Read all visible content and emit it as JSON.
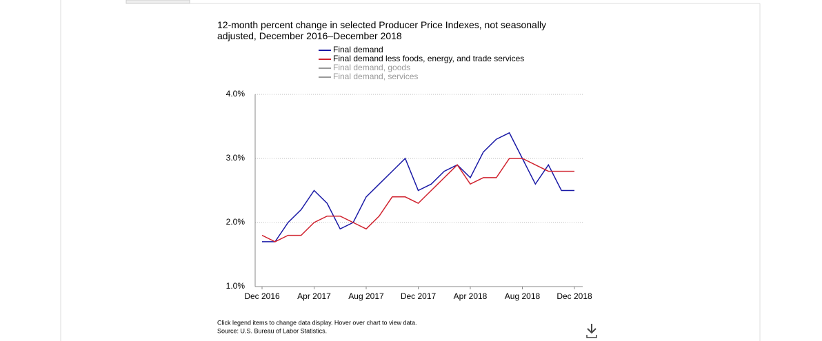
{
  "chart_data": {
    "type": "line",
    "title": "12-month percent change in selected Producer Price Indexes, not seasonally adjusted, December 2016–December 2018",
    "categories": [
      "Dec 2016",
      null,
      null,
      null,
      "Apr 2017",
      null,
      null,
      null,
      "Aug 2017",
      null,
      null,
      null,
      "Dec 2017",
      null,
      null,
      null,
      "Apr 2018",
      null,
      null,
      null,
      "Aug 2018",
      null,
      null,
      null,
      "Dec 2018"
    ],
    "series": [
      {
        "name": "Final demand",
        "color": "#1a1aa6",
        "values": [
          1.7,
          1.7,
          2.0,
          2.2,
          2.5,
          2.3,
          1.9,
          2.0,
          2.4,
          2.6,
          2.8,
          3.0,
          2.5,
          2.6,
          2.8,
          2.9,
          2.7,
          3.1,
          3.3,
          3.4,
          3.0,
          2.6,
          2.9,
          2.5,
          2.5
        ]
      },
      {
        "name": "Final demand less foods, energy, and trade services",
        "color": "#d0222e",
        "values": [
          1.8,
          1.7,
          1.8,
          1.8,
          2.0,
          2.1,
          2.1,
          2.0,
          1.9,
          2.1,
          2.4,
          2.4,
          2.3,
          2.5,
          2.7,
          2.9,
          2.6,
          2.7,
          2.7,
          3.0,
          3.0,
          2.9,
          2.8,
          2.8,
          2.8
        ]
      }
    ],
    "hidden_legend_items": [
      "Final demand, goods",
      "Final demand, services"
    ],
    "ylim": [
      1,
      4
    ],
    "yticks": [
      {
        "value": 1,
        "label": "1.0%"
      },
      {
        "value": 2,
        "label": "2.0%"
      },
      {
        "value": 3,
        "label": "3.0%"
      },
      {
        "value": 4,
        "label": "4.0%"
      }
    ],
    "grid": true,
    "notes": [
      "Click legend items to change data display. Hover over chart to view data.",
      "Source: U.S. Bureau of Labor Statistics."
    ]
  }
}
